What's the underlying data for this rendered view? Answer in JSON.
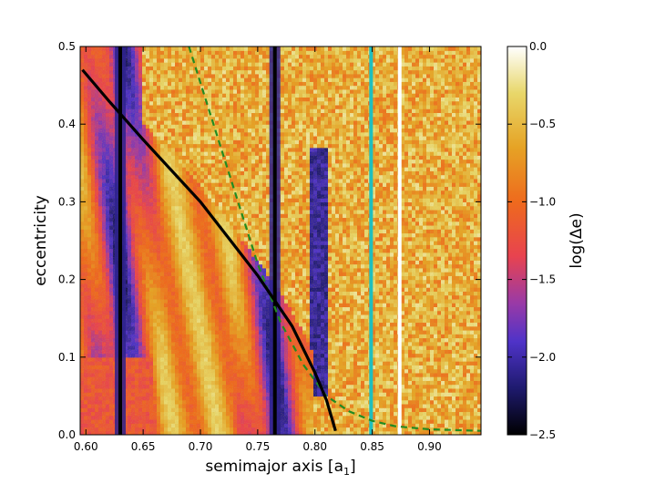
{
  "chart_data": {
    "type": "heatmap",
    "title": "",
    "xlabel_main": "semimajor axis  [a",
    "xlabel_sub": "1",
    "xlabel_close": "]",
    "ylabel": "eccentricity",
    "colorbar_label": "log(Δe)",
    "xlim": [
      0.595,
      0.945
    ],
    "ylim": [
      0.0,
      0.5
    ],
    "x_ticks": [
      0.6,
      0.65,
      0.7,
      0.75,
      0.8,
      0.85,
      0.9
    ],
    "x_tick_labels": [
      "0.60",
      "0.65",
      "0.70",
      "0.75",
      "0.80",
      "0.85",
      "0.90"
    ],
    "y_ticks": [
      0.0,
      0.1,
      0.2,
      0.3,
      0.4,
      0.5
    ],
    "y_tick_labels": [
      "0.0",
      "0.1",
      "0.2",
      "0.3",
      "0.4",
      "0.5"
    ],
    "colorbar": {
      "range": [
        -2.5,
        0.0
      ],
      "ticks": [
        0.0,
        -0.5,
        -1.0,
        -1.5,
        -2.0,
        -2.5
      ],
      "tick_labels": [
        "0.0",
        "−0.5",
        "−1.0",
        "−1.5",
        "−2.0",
        "−2.5"
      ],
      "colormap": "CMRmap-like (black-purple-red-orange-yellow-white)"
    },
    "colormap_stops": [
      {
        "value": -2.5,
        "color": "#000000"
      },
      {
        "value": -2.2,
        "color": "#1e1a6e"
      },
      {
        "value": -1.9,
        "color": "#4f33c8"
      },
      {
        "value": -1.65,
        "color": "#9a3aa6"
      },
      {
        "value": -1.35,
        "color": "#e8434f"
      },
      {
        "value": -1.0,
        "color": "#ee6a1d"
      },
      {
        "value": -0.65,
        "color": "#e6a325"
      },
      {
        "value": -0.3,
        "color": "#e8d76a"
      },
      {
        "value": 0.0,
        "color": "#ffffff"
      }
    ],
    "resonance_lines_x": [
      0.63,
      0.765
    ],
    "vertical_lines": [
      {
        "x": 0.849,
        "color": "#1fbfbf"
      },
      {
        "x": 0.874,
        "color": "#ffffff"
      }
    ],
    "black_curve": {
      "color": "#000000",
      "style": "solid",
      "points": [
        [
          0.597,
          0.47
        ],
        [
          0.62,
          0.43
        ],
        [
          0.65,
          0.38
        ],
        [
          0.7,
          0.3
        ],
        [
          0.75,
          0.205
        ],
        [
          0.78,
          0.14
        ],
        [
          0.8,
          0.08
        ],
        [
          0.81,
          0.045
        ],
        [
          0.818,
          0.005
        ]
      ]
    },
    "dashed_curve": {
      "color": "#228b22",
      "style": "dashed",
      "points": [
        [
          0.69,
          0.5
        ],
        [
          0.72,
          0.36
        ],
        [
          0.75,
          0.22
        ],
        [
          0.77,
          0.145
        ],
        [
          0.79,
          0.09
        ],
        [
          0.81,
          0.05
        ],
        [
          0.83,
          0.03
        ],
        [
          0.85,
          0.018
        ],
        [
          0.87,
          0.011
        ],
        [
          0.9,
          0.007
        ],
        [
          0.945,
          0.005
        ]
      ]
    }
  }
}
